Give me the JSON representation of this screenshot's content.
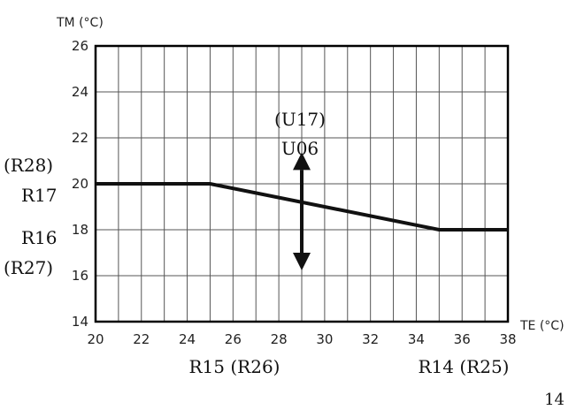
{
  "chart_data": {
    "type": "line",
    "xlabel": "TE (°C)",
    "ylabel": "TM (°C)",
    "xlim": [
      20,
      38
    ],
    "ylim": [
      14,
      26
    ],
    "x_ticks": [
      20,
      22,
      24,
      26,
      28,
      30,
      32,
      34,
      36,
      38
    ],
    "y_ticks": [
      14,
      16,
      18,
      20,
      22,
      24,
      26
    ],
    "grid": true,
    "series": [
      {
        "x": [
          20,
          25,
          35,
          38
        ],
        "y": [
          20,
          20,
          18,
          18
        ]
      }
    ],
    "arrow": {
      "x": 29,
      "y_from": 17,
      "y_to": 20.6,
      "direction": "both"
    },
    "annotations": {
      "u17": "(U17)",
      "u06": "U06",
      "r28": "(R28)",
      "r17": "R17",
      "r16": "R16",
      "r27": "(R27)",
      "r15_r26": "R15 (R26)",
      "r14_r25": "R14 (R25)"
    }
  },
  "page_number": "14"
}
